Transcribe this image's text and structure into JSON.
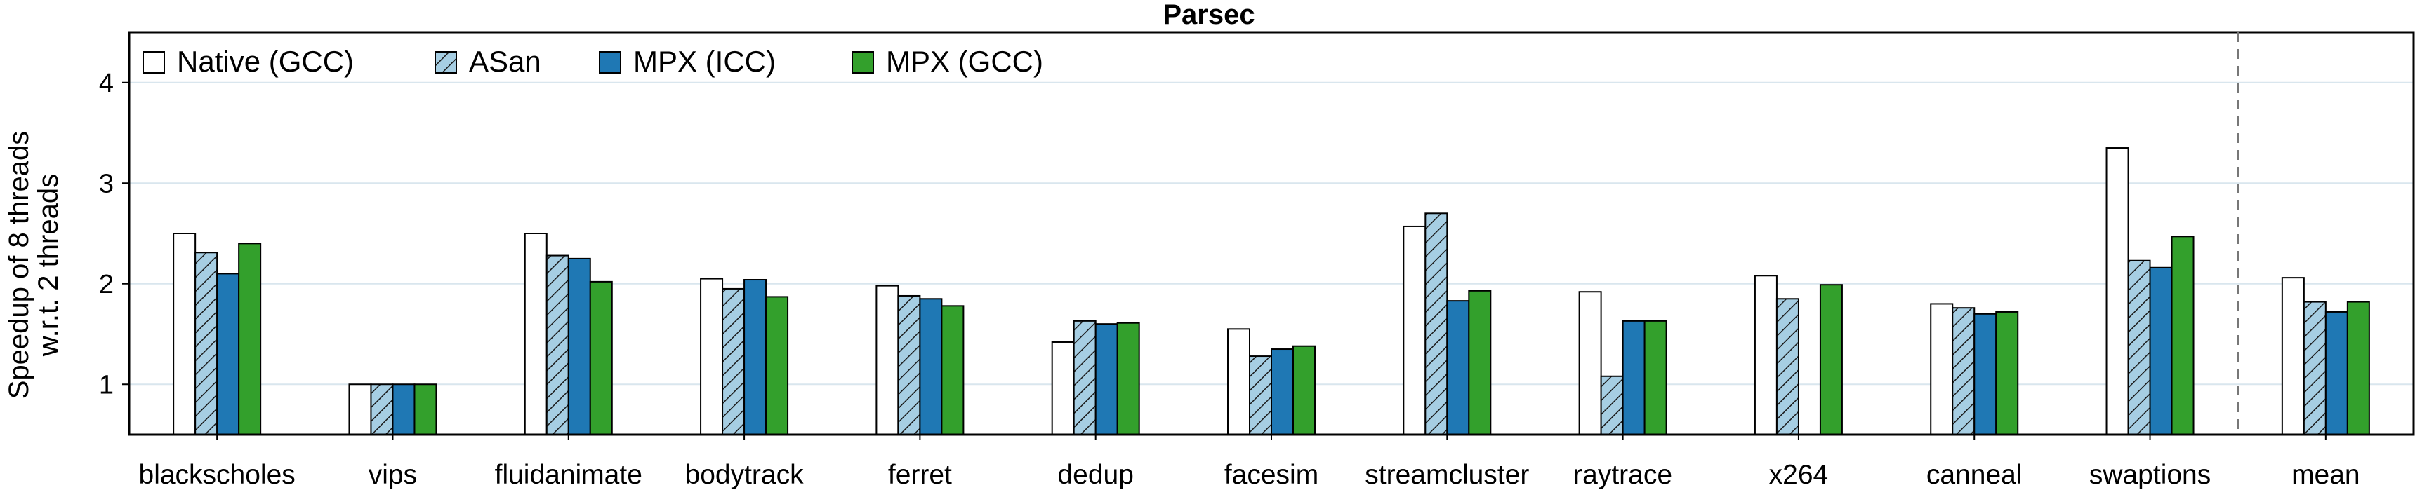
{
  "chart_data": {
    "type": "bar",
    "title": "Parsec",
    "ylabel_line1": "Speedup of 8 threads",
    "ylabel_line2": "w.r.t. 2 threads",
    "xlabel": "",
    "ylim": [
      0.5,
      4.5
    ],
    "yticks": [
      1,
      2,
      3,
      4
    ],
    "grid": "horizontal",
    "legend_position": "top-left",
    "categories": [
      "blackscholes",
      "vips",
      "fluidanimate",
      "bodytrack",
      "ferret",
      "dedup",
      "facesim",
      "streamcluster",
      "raytrace",
      "x264",
      "canneal",
      "swaptions",
      "mean"
    ],
    "series": [
      {
        "name": "Native (GCC)",
        "fill": "#ffffff",
        "pattern": "none",
        "values": [
          2.5,
          1.0,
          2.5,
          2.05,
          1.98,
          1.42,
          1.55,
          2.57,
          1.92,
          2.08,
          1.8,
          3.35,
          2.06
        ]
      },
      {
        "name": "ASan",
        "fill": "#a6cee3",
        "pattern": "hatch",
        "values": [
          2.31,
          1.0,
          2.28,
          1.95,
          1.88,
          1.63,
          1.28,
          2.7,
          1.08,
          1.85,
          1.76,
          2.23,
          1.82
        ]
      },
      {
        "name": "MPX (ICC)",
        "fill": "#1f78b4",
        "pattern": "none",
        "values": [
          2.1,
          1.0,
          2.25,
          2.04,
          1.85,
          1.6,
          1.35,
          1.83,
          1.63,
          null,
          1.7,
          2.16,
          1.72
        ]
      },
      {
        "name": "MPX (GCC)",
        "fill": "#33a02c",
        "pattern": "none",
        "values": [
          2.4,
          1.0,
          2.02,
          1.87,
          1.78,
          1.61,
          1.38,
          1.93,
          1.63,
          1.99,
          1.72,
          2.47,
          1.82
        ]
      }
    ],
    "separator_before": "mean"
  }
}
